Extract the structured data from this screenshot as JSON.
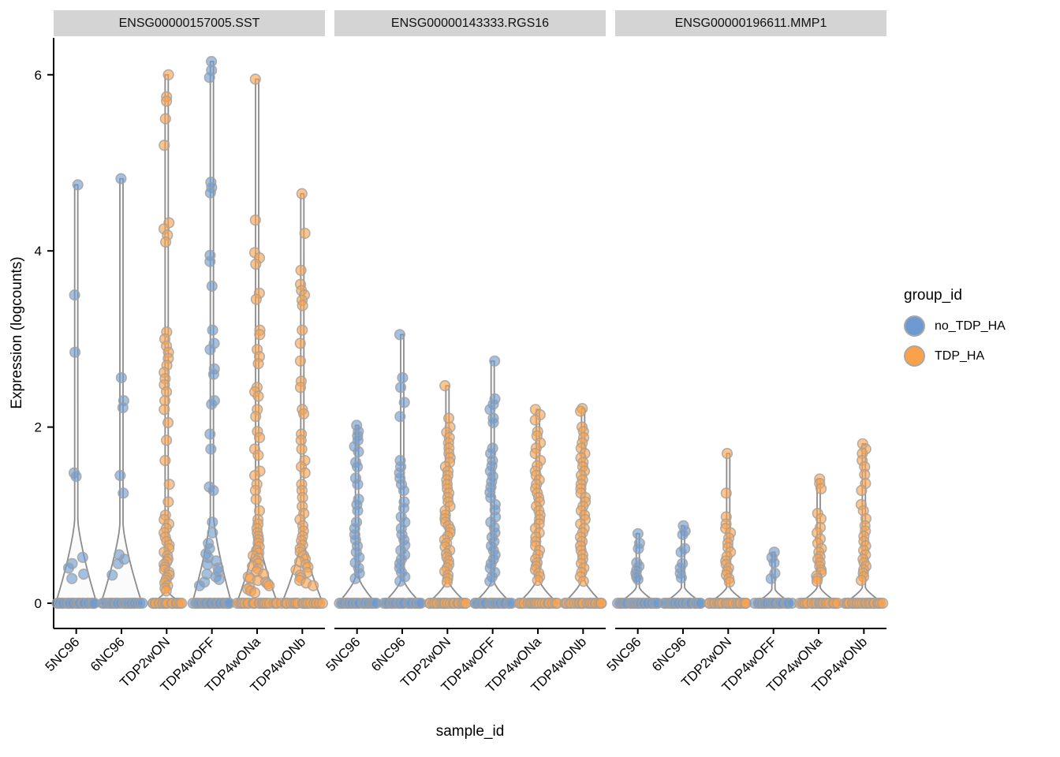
{
  "axes": {
    "x_title": "sample_id",
    "y_title": "Expression (logcounts)",
    "y_ticks": [
      "0",
      "2",
      "4",
      "6"
    ]
  },
  "legend": {
    "title": "group_id",
    "entries": [
      {
        "label": "no_TDP_HA",
        "color": "#6D9BD1"
      },
      {
        "label": "TDP_HA",
        "color": "#FAA24A"
      }
    ]
  },
  "style": {
    "point_stroke": "#A0A0A0",
    "violin_stroke": "#8C8C8C",
    "violin_fill": "#FAFAFA",
    "strip_background": "#D4D4D4",
    "axis_color": "#000000"
  },
  "chart_data": {
    "type": "violin",
    "xlabel": "sample_id",
    "ylabel": "Expression (logcounts)",
    "yticks": [
      0,
      2,
      4,
      6
    ],
    "ylim": [
      -0.28,
      6.42
    ],
    "legend_position": "right",
    "categories": [
      "5NC96",
      "6NC96",
      "TDP2wON",
      "TDP4wOFF",
      "TDP4wONa",
      "TDP4wONb"
    ],
    "group_colors": {
      "no_TDP_HA": "#6D9BD1",
      "TDP_HA": "#FAA24A"
    },
    "facets": [
      {
        "title": "ENSG00000157005.SST",
        "samples": [
          {
            "id": "5NC96",
            "group": "no_TDP_HA",
            "violin_top": 4.75,
            "flare": 0.95,
            "base_halfwidth": 26,
            "zeros": 22,
            "points": [
              4.75,
              3.5,
              2.85,
              1.48,
              1.44,
              0.52,
              0.45,
              0.4,
              0.33,
              0.28
            ]
          },
          {
            "id": "6NC96",
            "group": "no_TDP_HA",
            "violin_top": 4.82,
            "flare": 0.9,
            "base_halfwidth": 26,
            "zeros": 22,
            "points": [
              4.82,
              2.56,
              2.3,
              2.22,
              1.45,
              1.25,
              0.55,
              0.5,
              0.45,
              0.32
            ]
          },
          {
            "id": "TDP2wON",
            "group": "TDP_HA",
            "violin_top": 6.0,
            "flare": 0.13,
            "base_halfwidth": 20,
            "zeros": 20,
            "points": [
              6.0,
              5.75,
              5.7,
              5.5,
              5.2,
              4.32,
              4.25,
              4.18,
              4.1,
              3.08,
              3.0,
              2.92,
              2.85,
              2.78,
              2.7,
              2.62,
              2.55,
              2.48,
              2.4,
              2.3,
              2.2,
              2.05,
              1.85,
              1.62,
              1.35,
              1.15,
              1.0,
              0.95,
              0.9,
              0.85,
              0.8,
              0.75,
              0.7,
              0.66,
              0.62,
              0.58,
              0.54,
              0.5,
              0.47,
              0.44,
              0.41,
              0.38,
              0.35,
              0.32,
              0.29,
              0.26,
              0.23,
              0.2,
              0.17,
              0.14
            ]
          },
          {
            "id": "TDP4wOFF",
            "group": "no_TDP_HA",
            "violin_top": 6.15,
            "flare": 1.0,
            "base_halfwidth": 25,
            "zeros": 22,
            "points": [
              6.15,
              6.05,
              5.97,
              4.78,
              4.72,
              4.66,
              3.95,
              3.88,
              3.6,
              3.1,
              2.95,
              2.88,
              2.66,
              2.6,
              2.3,
              2.26,
              1.92,
              1.75,
              1.32,
              1.28,
              0.92,
              0.8,
              0.68,
              0.62,
              0.56,
              0.52,
              0.48,
              0.44,
              0.4,
              0.36,
              0.33,
              0.3,
              0.27,
              0.24,
              0.2
            ]
          },
          {
            "id": "TDP4wONa",
            "group": "TDP_HA",
            "violin_top": 5.95,
            "flare": 0.78,
            "base_halfwidth": 26,
            "zeros": 20,
            "points": [
              5.95,
              4.35,
              3.98,
              3.92,
              3.85,
              3.52,
              3.45,
              3.1,
              3.05,
              2.88,
              2.8,
              2.72,
              2.45,
              2.4,
              2.35,
              2.2,
              2.12,
              1.95,
              1.88,
              1.75,
              1.68,
              1.5,
              1.45,
              1.35,
              1.28,
              1.18,
              1.05,
              0.95,
              0.9,
              0.85,
              0.8,
              0.76,
              0.72,
              0.68,
              0.64,
              0.6,
              0.57,
              0.54,
              0.51,
              0.48,
              0.45,
              0.42,
              0.39,
              0.36,
              0.33,
              0.3,
              0.28,
              0.26,
              0.24,
              0.22,
              0.2,
              0.18,
              0.16,
              0.14,
              0.12
            ]
          },
          {
            "id": "TDP4wONb",
            "group": "TDP_HA",
            "violin_top": 4.65,
            "flare": 0.72,
            "base_halfwidth": 26,
            "zeros": 20,
            "points": [
              4.65,
              4.2,
              3.78,
              3.62,
              3.55,
              3.5,
              3.44,
              3.38,
              3.1,
              2.95,
              2.75,
              2.52,
              2.45,
              2.2,
              2.15,
              1.92,
              1.85,
              1.75,
              1.62,
              1.55,
              1.48,
              1.35,
              1.28,
              1.2,
              1.1,
              1.02,
              0.95,
              0.88,
              0.82,
              0.76,
              0.71,
              0.66,
              0.62,
              0.58,
              0.54,
              0.5,
              0.47,
              0.44,
              0.41,
              0.38,
              0.35,
              0.32,
              0.29,
              0.26,
              0.23,
              0.2
            ]
          }
        ]
      },
      {
        "title": "ENSG00000143333.RGS16",
        "samples": [
          {
            "id": "5NC96",
            "group": "no_TDP_HA",
            "violin_top": 2.02,
            "flare": 0.3,
            "base_halfwidth": 24,
            "zeros": 22,
            "points": [
              2.02,
              1.95,
              1.9,
              1.85,
              1.78,
              1.72,
              1.6,
              1.55,
              1.42,
              1.35,
              1.18,
              1.12,
              1.05,
              0.92,
              0.85,
              0.78,
              0.72,
              0.65,
              0.58,
              0.52,
              0.46,
              0.4,
              0.34,
              0.28
            ]
          },
          {
            "id": "6NC96",
            "group": "no_TDP_HA",
            "violin_top": 3.05,
            "flare": 0.26,
            "base_halfwidth": 24,
            "zeros": 22,
            "points": [
              3.05,
              2.56,
              2.45,
              2.28,
              2.12,
              1.62,
              1.55,
              1.48,
              1.42,
              1.35,
              1.28,
              1.15,
              1.08,
              0.98,
              0.92,
              0.85,
              0.78,
              0.72,
              0.66,
              0.6,
              0.55,
              0.5,
              0.45,
              0.4,
              0.35,
              0.3,
              0.25
            ]
          },
          {
            "id": "TDP2wON",
            "group": "TDP_HA",
            "violin_top": 2.47,
            "flare": 0.24,
            "base_halfwidth": 25,
            "zeros": 20,
            "points": [
              2.47,
              2.1,
              2.0,
              1.94,
              1.88,
              1.82,
              1.76,
              1.7,
              1.65,
              1.6,
              1.55,
              1.5,
              1.45,
              1.4,
              1.35,
              1.3,
              1.25,
              1.2,
              1.15,
              1.1,
              1.05,
              1.0,
              0.96,
              0.92,
              0.88,
              0.84,
              0.8,
              0.76,
              0.72,
              0.68,
              0.64,
              0.6,
              0.56,
              0.52,
              0.48,
              0.44,
              0.4,
              0.36,
              0.32,
              0.28,
              0.24
            ]
          },
          {
            "id": "TDP4wOFF",
            "group": "no_TDP_HA",
            "violin_top": 2.75,
            "flare": 0.24,
            "base_halfwidth": 24,
            "zeros": 22,
            "points": [
              2.75,
              2.32,
              2.26,
              2.2,
              2.1,
              2.05,
              1.76,
              1.7,
              1.62,
              1.56,
              1.5,
              1.44,
              1.38,
              1.32,
              1.26,
              1.2,
              1.12,
              1.06,
              0.98,
              0.92,
              0.86,
              0.8,
              0.75,
              0.7,
              0.65,
              0.6,
              0.55,
              0.5,
              0.45,
              0.4,
              0.35,
              0.3,
              0.25
            ]
          },
          {
            "id": "TDP4wONa",
            "group": "TDP_HA",
            "violin_top": 2.2,
            "flare": 0.26,
            "base_halfwidth": 25,
            "zeros": 20,
            "points": [
              2.2,
              2.14,
              2.08,
              1.95,
              1.9,
              1.82,
              1.76,
              1.7,
              1.62,
              1.56,
              1.5,
              1.45,
              1.4,
              1.35,
              1.3,
              1.25,
              1.2,
              1.15,
              1.1,
              1.05,
              1.0,
              0.95,
              0.9,
              0.85,
              0.8,
              0.75,
              0.7,
              0.65,
              0.6,
              0.55,
              0.5,
              0.46,
              0.42,
              0.38,
              0.34,
              0.3,
              0.26
            ]
          },
          {
            "id": "TDP4wONb",
            "group": "TDP_HA",
            "violin_top": 2.21,
            "flare": 0.26,
            "base_halfwidth": 25,
            "zeros": 20,
            "points": [
              2.21,
              2.18,
              2.0,
              1.95,
              1.88,
              1.82,
              1.76,
              1.7,
              1.65,
              1.6,
              1.55,
              1.5,
              1.45,
              1.4,
              1.35,
              1.3,
              1.25,
              1.2,
              1.15,
              1.1,
              1.05,
              1.0,
              0.95,
              0.9,
              0.85,
              0.8,
              0.75,
              0.7,
              0.65,
              0.6,
              0.55,
              0.5,
              0.45,
              0.4,
              0.35,
              0.3,
              0.25
            ]
          }
        ]
      },
      {
        "title": "ENSG00000196611.MMP1",
        "samples": [
          {
            "id": "5NC96",
            "group": "no_TDP_HA",
            "violin_top": 0.79,
            "flare": 0.18,
            "base_halfwidth": 25,
            "zeros": 24,
            "points": [
              0.79,
              0.68,
              0.62,
              0.46,
              0.42,
              0.38,
              0.34,
              0.3,
              0.27
            ]
          },
          {
            "id": "6NC96",
            "group": "no_TDP_HA",
            "violin_top": 0.88,
            "flare": 0.18,
            "base_halfwidth": 25,
            "zeros": 24,
            "points": [
              0.88,
              0.82,
              0.78,
              0.62,
              0.58,
              0.45,
              0.4,
              0.34,
              0.29
            ]
          },
          {
            "id": "TDP2wON",
            "group": "TDP_HA",
            "violin_top": 1.7,
            "flare": 0.18,
            "base_halfwidth": 25,
            "zeros": 22,
            "points": [
              1.7,
              1.25,
              0.98,
              0.9,
              0.85,
              0.8,
              0.74,
              0.68,
              0.63,
              0.58,
              0.53,
              0.48,
              0.44,
              0.4,
              0.36,
              0.32,
              0.28,
              0.24
            ]
          },
          {
            "id": "TDP4wOFF",
            "group": "no_TDP_HA",
            "violin_top": 0.58,
            "flare": 0.16,
            "base_halfwidth": 23,
            "zeros": 24,
            "points": [
              0.58,
              0.52,
              0.46,
              0.34,
              0.28
            ]
          },
          {
            "id": "TDP4wONa",
            "group": "TDP_HA",
            "violin_top": 1.41,
            "flare": 0.18,
            "base_halfwidth": 25,
            "zeros": 22,
            "points": [
              1.41,
              1.36,
              1.3,
              1.02,
              0.96,
              0.86,
              0.8,
              0.73,
              0.68,
              0.62,
              0.58,
              0.53,
              0.5,
              0.46,
              0.42,
              0.38,
              0.35,
              0.31,
              0.28,
              0.25
            ]
          },
          {
            "id": "TDP4wONb",
            "group": "TDP_HA",
            "violin_top": 1.81,
            "flare": 0.18,
            "base_halfwidth": 25,
            "zeros": 22,
            "points": [
              1.81,
              1.75,
              1.7,
              1.62,
              1.55,
              1.46,
              1.36,
              1.28,
              1.12,
              1.05,
              0.96,
              0.88,
              0.82,
              0.76,
              0.7,
              0.65,
              0.6,
              0.55,
              0.5,
              0.46,
              0.42,
              0.38,
              0.34,
              0.3,
              0.26
            ]
          }
        ]
      }
    ]
  }
}
